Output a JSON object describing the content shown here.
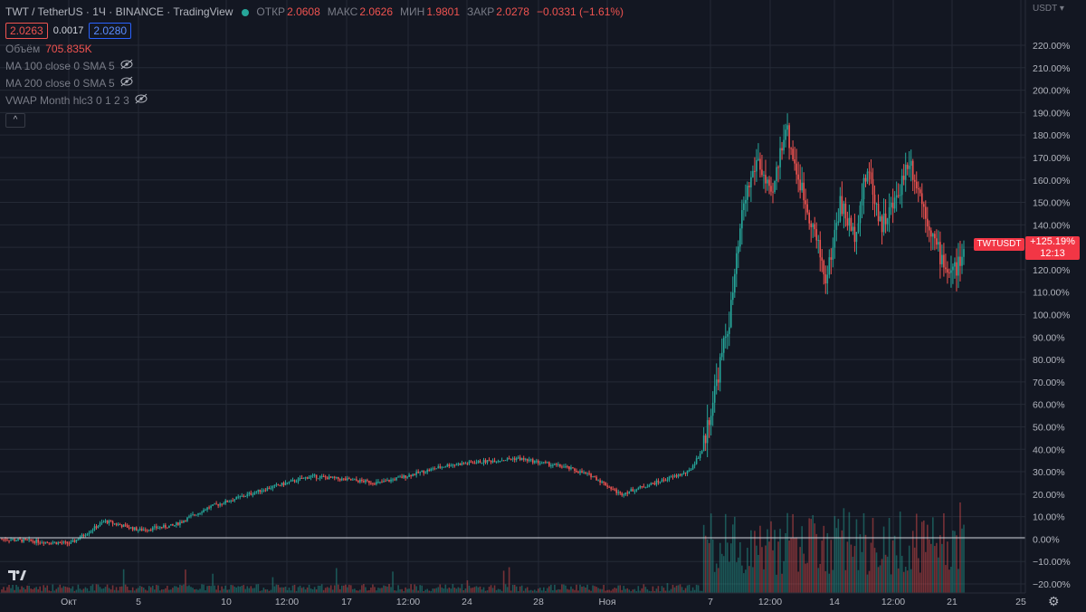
{
  "header": {
    "symbol": "TWT / TetherUS · 1Ч · BINANCE · TradingView",
    "open_label": "ОТКР",
    "open": "2.0608",
    "high_label": "МАКС",
    "high": "2.0626",
    "low_label": "МИН",
    "low": "1.9801",
    "close_label": "ЗАКР",
    "close": "2.0278",
    "change": "−0.0331 (−1.61%)"
  },
  "quote": {
    "bid": "2.0263",
    "spread": "0.0017",
    "ask": "2.0280"
  },
  "indicators": {
    "volume_label": "Объём",
    "volume_value": "705.835K",
    "ma100": "MA 100 close 0 SMA 5",
    "ma200": "MA 200 close 0 SMA 5",
    "vwap": "VWAP Month hlc3 0 1 2 3",
    "collapse_glyph": "^"
  },
  "price_scale": {
    "currency": "USDT",
    "last_symbol": "TWTUSDT",
    "last_change": "+125.19%",
    "countdown": "12:13"
  },
  "chart_data": {
    "type": "candlestick",
    "title": "TWT / TetherUS",
    "interval": "1Ч",
    "exchange": "BINANCE",
    "y_axis": {
      "unit": "percent",
      "ticks": [
        "220.00%",
        "210.00%",
        "200.00%",
        "190.00%",
        "180.00%",
        "170.00%",
        "160.00%",
        "150.00%",
        "140.00%",
        "130.00%",
        "120.00%",
        "110.00%",
        "100.00%",
        "90.00%",
        "80.00%",
        "70.00%",
        "60.00%",
        "50.00%",
        "40.00%",
        "30.00%",
        "20.00%",
        "10.00%",
        "0.00%",
        "−10.00%",
        "−20.00%"
      ],
      "ylim": [
        -22,
        222
      ]
    },
    "x_axis": {
      "ticks": [
        "Окт",
        "5",
        "10",
        "12:00",
        "17",
        "12:00",
        "24",
        "28",
        "Ноя",
        "7",
        "12:00",
        "14",
        "12:00",
        "21",
        "25"
      ]
    },
    "series": [
      {
        "name": "TWTUSDT",
        "x": [
          0,
          5,
          10,
          15,
          20,
          25,
          30,
          38,
          45,
          55,
          65,
          75,
          82,
          86,
          90,
          96,
          100
        ],
        "y": [
          0,
          -1,
          -2,
          8,
          4,
          6,
          14,
          22,
          28,
          25,
          33,
          36,
          32,
          28,
          20,
          26,
          30
        ]
      },
      {
        "name": "TWTUSDT",
        "x": [
          100,
          102,
          104,
          106,
          108,
          110,
          112,
          114,
          116,
          118,
          120,
          122,
          124,
          126,
          128,
          130,
          132,
          134,
          136,
          138,
          140
        ],
        "y": [
          30,
          40,
          70,
          100,
          150,
          170,
          150,
          185,
          160,
          140,
          115,
          150,
          135,
          165,
          140,
          150,
          170,
          150,
          130,
          118,
          125
        ]
      }
    ],
    "last_value": 125.19,
    "grid": true,
    "legend": "top-left"
  },
  "colors": {
    "up": "#26a69a",
    "down": "#ef5350",
    "background": "#131722",
    "grid": "#252a36",
    "zero_line": "#d1d4dc"
  }
}
